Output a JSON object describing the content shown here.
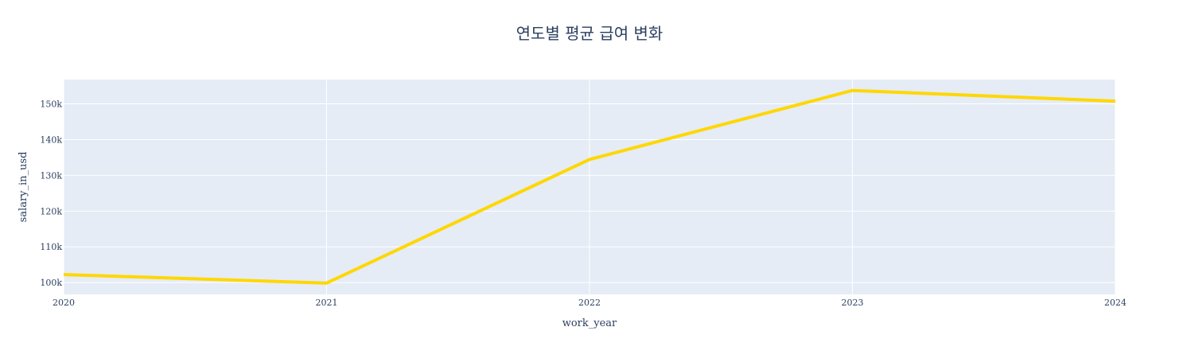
{
  "chart_data": {
    "type": "line",
    "title": "연도별 평균 급여 변화",
    "xlabel": "work_year",
    "ylabel": "salary_in_usd",
    "x": [
      2020,
      2021,
      2022,
      2023,
      2024
    ],
    "series": [
      {
        "values": [
          102250,
          99850,
          134450,
          153750,
          150750
        ],
        "color": "#FFD700"
      }
    ],
    "x_ticks": [
      "2020",
      "2021",
      "2022",
      "2023",
      "2024"
    ],
    "y_ticks": [
      {
        "value": 100000,
        "label": "100k"
      },
      {
        "value": 110000,
        "label": "110k"
      },
      {
        "value": 120000,
        "label": "120k"
      },
      {
        "value": 130000,
        "label": "130k"
      },
      {
        "value": 140000,
        "label": "140k"
      },
      {
        "value": 150000,
        "label": "150k"
      }
    ],
    "xlim": [
      2020,
      2024
    ],
    "ylim": [
      96700,
      156800
    ],
    "grid": true,
    "plot_background": "#E5ECF6",
    "grid_color": "#ffffff",
    "text_color": "#2a3f5f"
  }
}
